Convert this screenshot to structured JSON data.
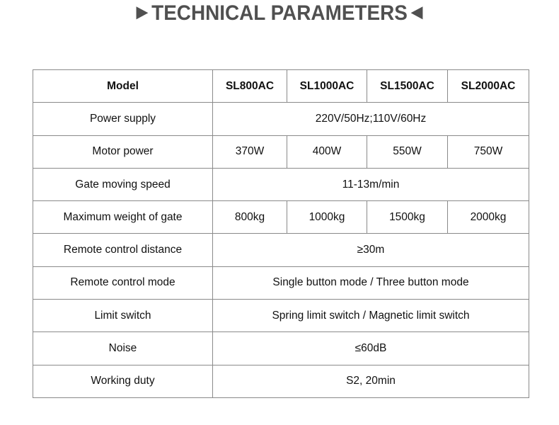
{
  "title": "TECHNICAL PARAMETERS",
  "icons": {
    "left": "triangle-right-icon",
    "right": "triangle-left-icon"
  },
  "header": {
    "label": "Model",
    "models": [
      "SL800AC",
      "SL1000AC",
      "SL1500AC",
      "SL2000AC"
    ]
  },
  "rows": [
    {
      "label": "Power supply",
      "value": "220V/50Hz;110V/60Hz"
    },
    {
      "label": "Motor power",
      "values": [
        "370W",
        "400W",
        "550W",
        "750W"
      ]
    },
    {
      "label": "Gate moving speed",
      "value": "11-13m/min"
    },
    {
      "label": "Maximum weight of gate",
      "values": [
        "800kg",
        "1000kg",
        "1500kg",
        "2000kg"
      ]
    },
    {
      "label": "Remote control distance",
      "value": "≥30m"
    },
    {
      "label": "Remote control mode",
      "value": "Single button mode / Three button mode"
    },
    {
      "label": "Limit switch",
      "value": "Spring limit switch / Magnetic limit switch"
    },
    {
      "label": "Noise",
      "value": "≤60dB"
    },
    {
      "label": "Working duty",
      "value": "S2, 20min"
    }
  ]
}
